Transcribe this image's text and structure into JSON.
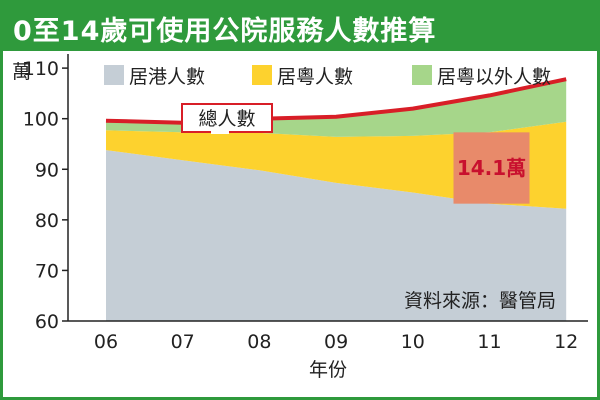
{
  "header": {
    "title": "0至14歲可使用公院服務人數推算"
  },
  "chart_data": {
    "type": "area",
    "title": "0至14歲可使用公院服務人數推算",
    "unit": "萬",
    "xlabel": "年份",
    "ylabel": "萬",
    "x": [
      "06",
      "07",
      "08",
      "09",
      "10",
      "11",
      "12"
    ],
    "ylim": [
      60,
      112
    ],
    "yticks": [
      60,
      70,
      80,
      90,
      100,
      110
    ],
    "grid": false,
    "legend_position": "top",
    "series": [
      {
        "name": "居港人數",
        "color": "#c5ced6",
        "values": [
          93.8,
          91.8,
          89.8,
          87.3,
          85.4,
          83.2,
          82.2
        ]
      },
      {
        "name": "居粵人數",
        "color": "#fdd22e",
        "values": [
          3.9,
          5.5,
          7.4,
          9.1,
          11.2,
          14.1,
          17.2
        ]
      },
      {
        "name": "居粵以外人數",
        "color": "#a6d68a",
        "values": [
          1.9,
          1.9,
          2.8,
          4.0,
          5.4,
          7.3,
          8.4
        ]
      }
    ],
    "total_line": {
      "name": "總人數",
      "color": "#d81e27",
      "values": [
        99.6,
        99.2,
        100.0,
        100.4,
        102.0,
        104.6,
        107.8
      ]
    },
    "annotation": {
      "text": "14.1萬",
      "x": "11",
      "y_bottom": 83.2,
      "y_top": 97.3,
      "color": "#e88a6a"
    },
    "source": "資料來源：醫管局"
  }
}
